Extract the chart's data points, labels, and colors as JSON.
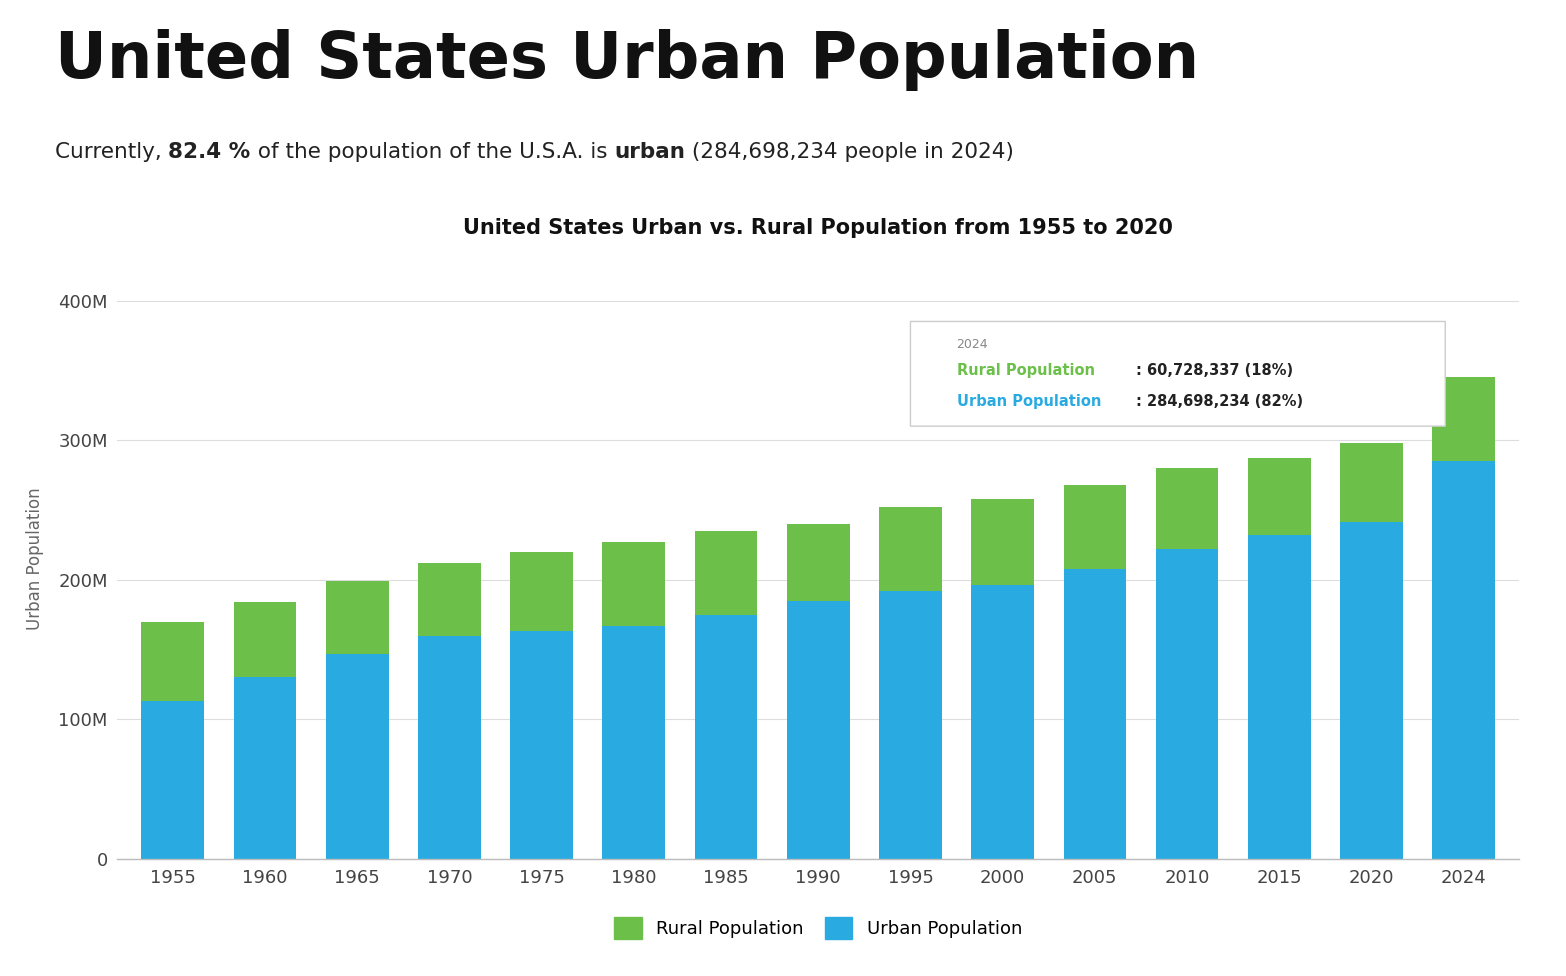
{
  "title_main": "United States Urban Population",
  "chart_title": "United States Urban vs. Rural Population from 1955 to 2020",
  "years": [
    1955,
    1960,
    1965,
    1970,
    1975,
    1980,
    1985,
    1990,
    1995,
    2000,
    2005,
    2010,
    2015,
    2020,
    2024
  ],
  "urban_pop": [
    113000000,
    130000000,
    147000000,
    160000000,
    163000000,
    167000000,
    175000000,
    185000000,
    192000000,
    196000000,
    208000000,
    222000000,
    232000000,
    241000000,
    284698234
  ],
  "rural_pop": [
    57000000,
    54000000,
    52000000,
    52000000,
    57000000,
    60000000,
    60000000,
    55000000,
    60000000,
    62000000,
    60000000,
    58000000,
    55000000,
    57000000,
    60728337
  ],
  "urban_color": "#29ABE2",
  "rural_color": "#6CC04A",
  "bg_color": "#FFFFFF",
  "ylabel": "Urban Population",
  "yticks": [
    0,
    100000000,
    200000000,
    300000000,
    400000000
  ],
  "ytick_labels": [
    "0",
    "100M",
    "200M",
    "300M",
    "400M"
  ],
  "tooltip_year": "2024",
  "tooltip_rural": "60,728,337",
  "tooltip_rural_pct": "18%",
  "tooltip_urban": "284,698,234",
  "tooltip_urban_pct": "82%",
  "subtitle_normal1": "Currently, ",
  "subtitle_bold1": "82.4 %",
  "subtitle_normal2": " of the population of the U.S.A. is ",
  "subtitle_bold2": "urban",
  "subtitle_normal3": " (284,698,234 people in 2024)"
}
